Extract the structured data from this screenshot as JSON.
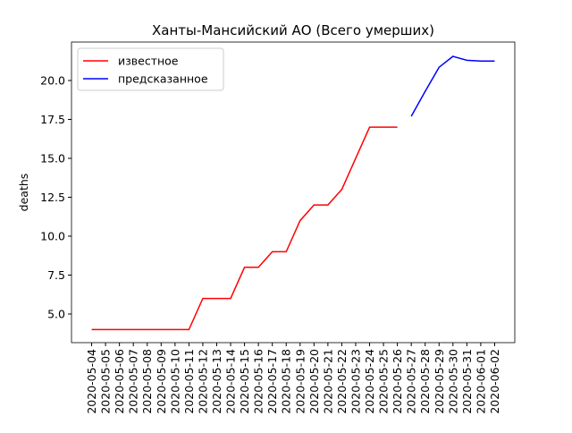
{
  "chart_data": {
    "type": "line",
    "title": "Ханты-Мансийский АО (Всего умерших)",
    "y_label": "deaths",
    "categories": [
      "2020-05-04",
      "2020-05-05",
      "2020-05-06",
      "2020-05-07",
      "2020-05-08",
      "2020-05-09",
      "2020-05-10",
      "2020-05-11",
      "2020-05-12",
      "2020-05-13",
      "2020-05-14",
      "2020-05-15",
      "2020-05-16",
      "2020-05-17",
      "2020-05-18",
      "2020-05-19",
      "2020-05-20",
      "2020-05-21",
      "2020-05-22",
      "2020-05-23",
      "2020-05-24",
      "2020-05-25",
      "2020-05-26",
      "2020-05-27",
      "2020-05-28",
      "2020-05-29",
      "2020-05-30",
      "2020-05-31",
      "2020-06-01",
      "2020-06-02"
    ],
    "series": [
      {
        "name": "известное",
        "color": "#ff0000",
        "values": [
          4,
          4,
          4,
          4,
          4,
          4,
          4,
          4,
          6,
          6,
          6,
          8,
          8,
          9,
          9,
          11,
          12,
          12,
          13,
          15,
          17,
          17,
          17,
          null,
          null,
          null,
          null,
          null,
          null,
          null
        ]
      },
      {
        "name": "предсказанное",
        "color": "#0000ff",
        "values": [
          null,
          null,
          null,
          null,
          null,
          null,
          null,
          null,
          null,
          null,
          null,
          null,
          null,
          null,
          null,
          null,
          null,
          null,
          null,
          null,
          null,
          null,
          null,
          17.7,
          19.3,
          20.85,
          21.55,
          21.3,
          21.25,
          21.25
        ]
      }
    ],
    "ylim": [
      3.16,
      22.47
    ],
    "yticks": [
      {
        "value": 5,
        "label": "5.0"
      },
      7.5,
      {
        "value": 10,
        "label": "10.0"
      },
      12.5,
      {
        "value": 15,
        "label": "15.0"
      },
      17.5,
      {
        "value": 20,
        "label": "20.0"
      }
    ],
    "legend": "upper left"
  }
}
